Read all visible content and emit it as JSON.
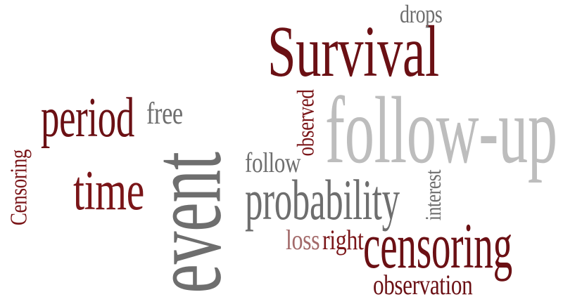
{
  "word_cloud": {
    "colors": {
      "dark_red": "#6b1014",
      "maroon": "#7a1518",
      "gray": "#6e6e6e",
      "light_gray": "#bdbdbd",
      "rose": "#a36a6a"
    },
    "words": [
      {
        "id": "survival",
        "text": "Survival",
        "color": "#6b1014"
      },
      {
        "id": "follow-up",
        "text": "follow-up",
        "color": "#bdbdbd"
      },
      {
        "id": "event",
        "text": "event",
        "color": "#6e6e6e"
      },
      {
        "id": "probability",
        "text": "probability",
        "color": "#6e6e6e"
      },
      {
        "id": "censoring",
        "text": "censoring",
        "color": "#6b1014"
      },
      {
        "id": "period",
        "text": "period",
        "color": "#6b1014"
      },
      {
        "id": "time",
        "text": "time",
        "color": "#7a1518"
      },
      {
        "id": "free",
        "text": "free",
        "color": "#6e6e6e"
      },
      {
        "id": "drops",
        "text": "drops",
        "color": "#6e6e6e"
      },
      {
        "id": "observed",
        "text": "observed",
        "color": "#7a1518"
      },
      {
        "id": "follow",
        "text": "follow",
        "color": "#6e6e6e"
      },
      {
        "id": "interest",
        "text": "interest",
        "color": "#6e6e6e"
      },
      {
        "id": "loss",
        "text": "loss",
        "color": "#a36a6a"
      },
      {
        "id": "right",
        "text": "right",
        "color": "#7a1518"
      },
      {
        "id": "observation",
        "text": "observation",
        "color": "#6b1014"
      },
      {
        "id": "censoring-vertical",
        "text": "Censoring",
        "color": "#7a1518"
      }
    ]
  }
}
